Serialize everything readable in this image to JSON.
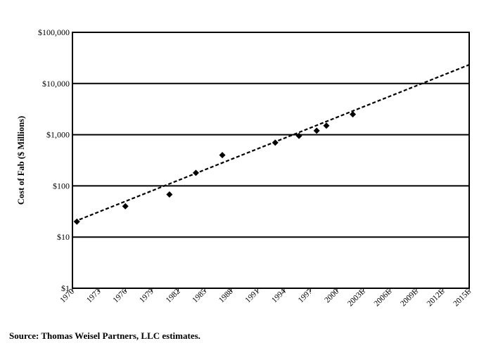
{
  "chart_data": {
    "type": "scatter",
    "title": "",
    "xlabel": "",
    "ylabel": "Cost of Fab ($ Millions)",
    "y_scale": "log",
    "ylim": [
      1,
      100000
    ],
    "xlim": [
      1970,
      2015
    ],
    "y_tick_values": [
      1,
      10,
      100,
      1000,
      10000,
      100000
    ],
    "y_tick_labels": [
      "$1",
      "$10",
      "$100",
      "$1,000",
      "$10,000",
      "$100,000"
    ],
    "x_tick_values": [
      1970,
      1973,
      1976,
      1979,
      1982,
      1985,
      1988,
      1991,
      1994,
      1997,
      2000,
      2003,
      2006,
      2009,
      2012,
      2015
    ],
    "x_tick_labels": [
      "1970",
      "1973",
      "1976",
      "1979",
      "1982",
      "1985",
      "1988",
      "1991",
      "1994",
      "1997",
      "2000",
      "2003E",
      "2006E",
      "2009E",
      "2012E",
      "2015E"
    ],
    "grid": "horizontal",
    "points": [
      {
        "x": 1970.5,
        "y": 20
      },
      {
        "x": 1976,
        "y": 40
      },
      {
        "x": 1981,
        "y": 68
      },
      {
        "x": 1984,
        "y": 180
      },
      {
        "x": 1987,
        "y": 400
      },
      {
        "x": 1993,
        "y": 700
      },
      {
        "x": 1995.7,
        "y": 950
      },
      {
        "x": 1997.7,
        "y": 1200
      },
      {
        "x": 1998.8,
        "y": 1500
      },
      {
        "x": 2001.8,
        "y": 2500
      }
    ],
    "trendline": {
      "style": "dashed",
      "x": [
        1970.2,
        2015.2
      ],
      "y": [
        20,
        24000
      ]
    }
  },
  "footer": {
    "source": "Source: Thomas Weisel Partners, LLC estimates."
  }
}
